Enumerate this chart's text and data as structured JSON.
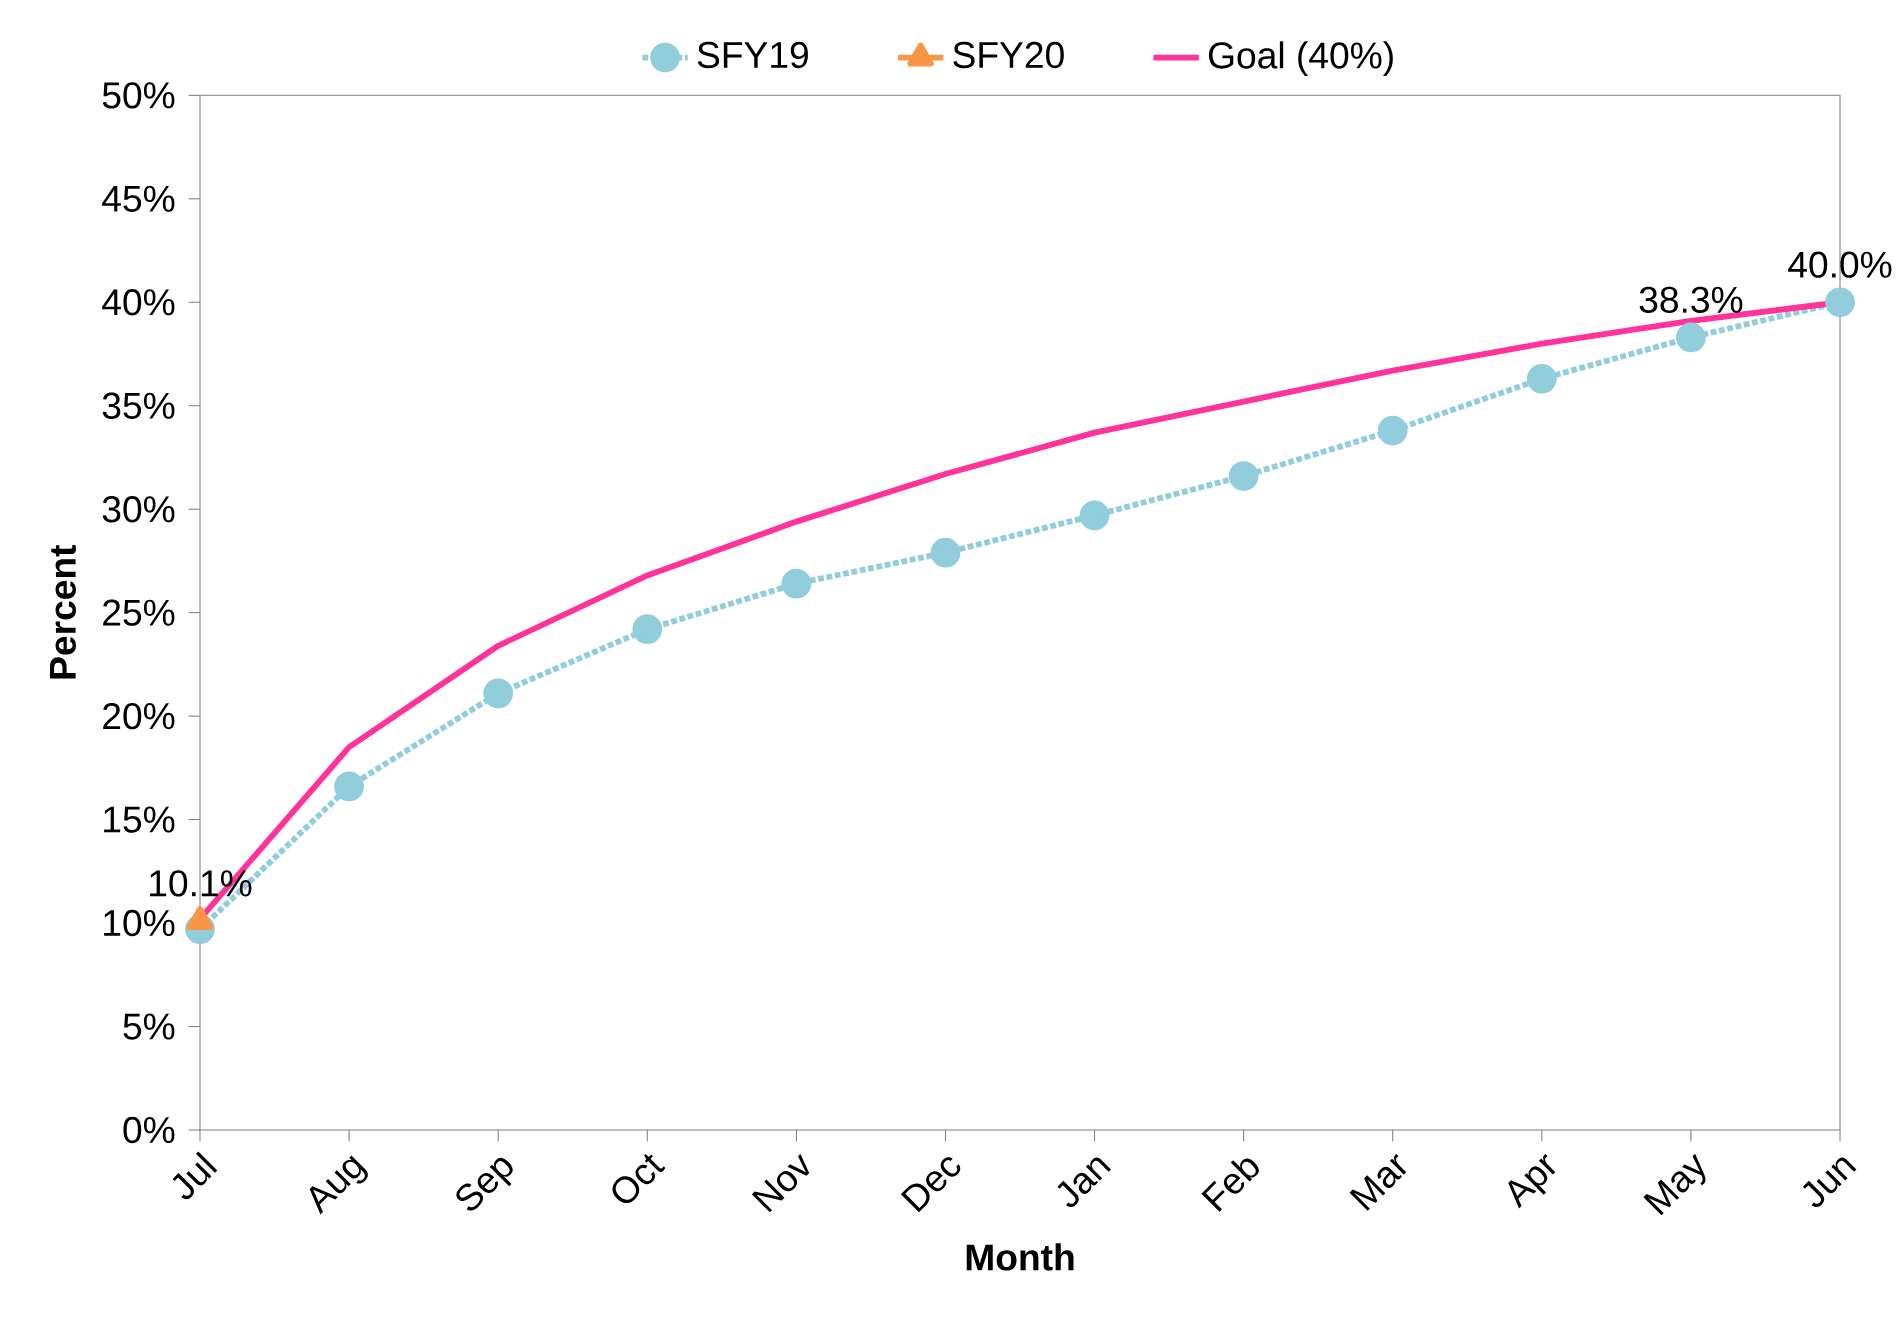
{
  "chart_data": {
    "type": "line",
    "xlabel": "Month",
    "ylabel": "Percent",
    "categories": [
      "Jul",
      "Aug",
      "Sep",
      "Oct",
      "Nov",
      "Dec",
      "Jan",
      "Feb",
      "Mar",
      "Apr",
      "May",
      "Jun"
    ],
    "series": [
      {
        "name": "SFY19",
        "color": "#92cddc",
        "marker": "circle",
        "line_style": "dotted",
        "values": [
          9.7,
          16.6,
          21.1,
          24.2,
          26.4,
          27.9,
          29.7,
          31.6,
          33.8,
          36.3,
          38.3,
          40.0
        ],
        "value_labels": [
          null,
          null,
          null,
          null,
          null,
          null,
          null,
          null,
          null,
          null,
          "38.3%",
          "40.0%"
        ]
      },
      {
        "name": "SFY20",
        "color": "#f79646",
        "marker": "triangle",
        "line_style": "solid",
        "values": [
          10.1,
          null,
          null,
          null,
          null,
          null,
          null,
          null,
          null,
          null,
          null,
          null
        ],
        "value_labels": [
          "10.1%",
          null,
          null,
          null,
          null,
          null,
          null,
          null,
          null,
          null,
          null,
          null
        ]
      },
      {
        "name": "Goal (40%)",
        "color": "#ff3399",
        "marker": "none",
        "line_style": "solid",
        "values": [
          10.2,
          18.5,
          23.4,
          26.8,
          29.4,
          31.7,
          33.7,
          35.2,
          36.7,
          38.0,
          39.1,
          40.0
        ]
      }
    ],
    "ylim": [
      0,
      50
    ],
    "yticks": [
      {
        "value": 0,
        "label": "0%"
      },
      {
        "value": 5,
        "label": "5%"
      },
      {
        "value": 10,
        "label": "10%"
      },
      {
        "value": 15,
        "label": "15%"
      },
      {
        "value": 20,
        "label": "20%"
      },
      {
        "value": 25,
        "label": "25%"
      },
      {
        "value": 30,
        "label": "30%"
      },
      {
        "value": 35,
        "label": "35%"
      },
      {
        "value": 40,
        "label": "40%"
      },
      {
        "value": 45,
        "label": "45%"
      },
      {
        "value": 50,
        "label": "50%"
      }
    ],
    "grid": false,
    "legend": "top"
  }
}
